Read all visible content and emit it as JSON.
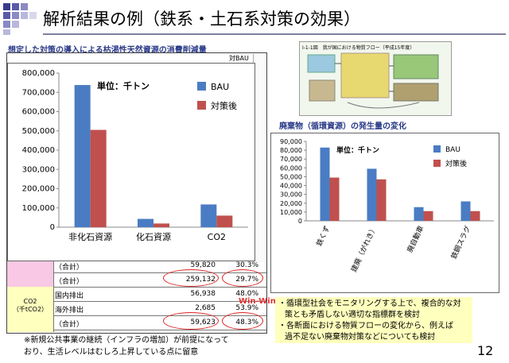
{
  "slide": {
    "title": "解析結果の例（鉄系・土石系対策の効果）",
    "left_subtitle": "想定した対策の導入による枯渇性天然資源の消費削減量",
    "right_subtitle": "廃棄物（循環資源）の発生量の変化",
    "bg_header_label": "対BAU",
    "page_number": "12",
    "winwin": "Win-Win",
    "note_left": [
      "※新規公共事業の継続（インフラの増加）が前提になって",
      "おり、生活レベルはむしろ上昇している点に留意"
    ],
    "note_right": [
      "・循環型社会をモニタリングする上で、複合的な対",
      "策とも矛盾しない適切な指標群を検討",
      "・各断面における物質フローの変化から、例えば",
      "過不足ない廃棄物対策などについても検討"
    ],
    "flow_caption": "I-1-1図　我が国における物質フロー（平成15年度）"
  },
  "table_rows": [
    {
      "label": "（合計）",
      "v1": "59,820",
      "v2": "30.3%"
    },
    {
      "label": "（合計）",
      "v1": "259,132",
      "v2": "29.7%"
    },
    {
      "label": "国内排出",
      "v1": "56,938",
      "v2": "48.0%"
    },
    {
      "label": "海外排出",
      "v1": "2,685",
      "v2": "53.9%"
    },
    {
      "label": "（合計）",
      "v1": "59,623",
      "v2": "48.3%"
    }
  ],
  "table_left": {
    "co2_label": "CO2",
    "co2_unit": "（千tCO2）"
  },
  "colors": {
    "bau": "#4a7cc4",
    "policy": "#c0504d",
    "title_rule": "#8080a0"
  },
  "chart_data": [
    {
      "type": "bar",
      "title": "単位：千トン",
      "categories": [
        "非化石資源",
        "化石資源",
        "CO2"
      ],
      "series": [
        {
          "name": "BAU",
          "values": [
            738000,
            43000,
            118000
          ]
        },
        {
          "name": "対策後",
          "values": [
            505000,
            19000,
            60000
          ]
        }
      ],
      "ylim": [
        0,
        800000
      ],
      "yticks": [
        "0",
        "100,000",
        "200,000",
        "300,000",
        "400,000",
        "500,000",
        "600,000",
        "700,000",
        "800,000"
      ],
      "legend": "top-right"
    },
    {
      "type": "bar",
      "title": "単位：千トン",
      "categories": [
        "鉄くず",
        "建廃（がれき）",
        "廃自動車",
        "鉄鋼スラグ"
      ],
      "series": [
        {
          "name": "BAU",
          "values": [
            83000,
            59000,
            15500,
            22000
          ]
        },
        {
          "name": "対策後",
          "values": [
            49000,
            47000,
            11000,
            11000
          ]
        }
      ],
      "ylim": [
        0,
        90000
      ],
      "yticks": [
        "0",
        "10,000",
        "20,000",
        "30,000",
        "40,000",
        "50,000",
        "60,000",
        "70,000",
        "80,000",
        "90,000"
      ],
      "legend": "top-right"
    }
  ]
}
